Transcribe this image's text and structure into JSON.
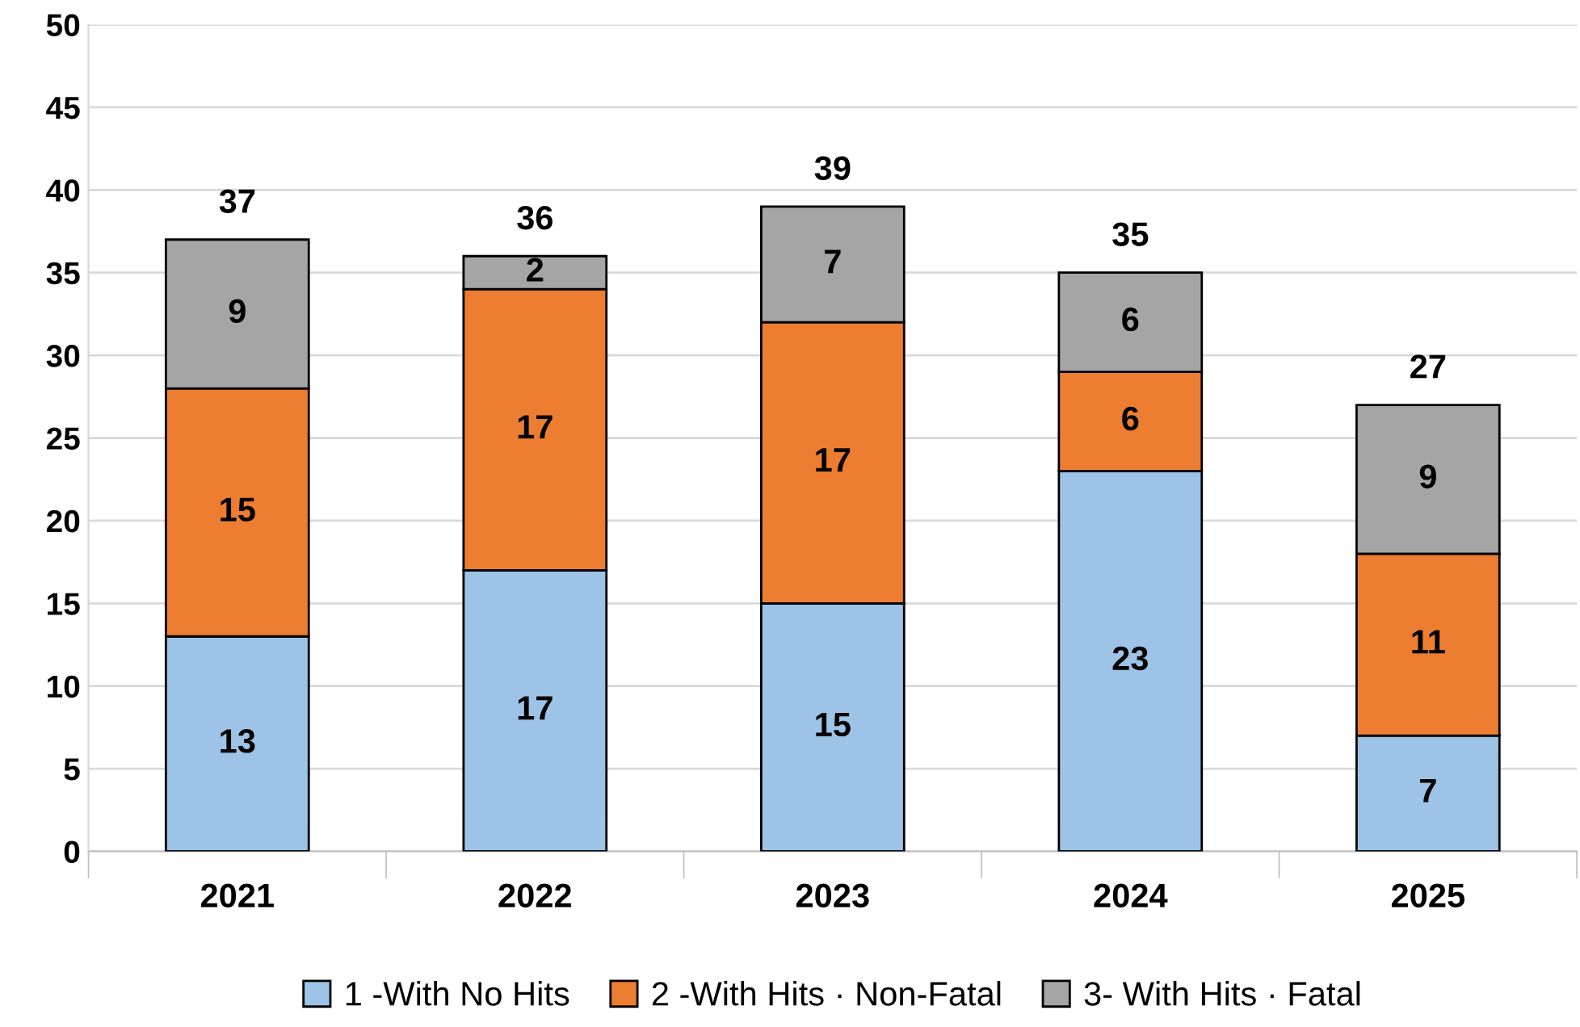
{
  "chart_data": {
    "type": "bar",
    "stacked": true,
    "categories": [
      "2021",
      "2022",
      "2023",
      "2024",
      "2025"
    ],
    "series": [
      {
        "name": "1 -With No Hits",
        "color": "#9dc3e6",
        "values": [
          13,
          17,
          15,
          23,
          7
        ]
      },
      {
        "name": "2 -With Hits · Non-Fatal",
        "color": "#ed7d31",
        "values": [
          15,
          17,
          17,
          6,
          11
        ]
      },
      {
        "name": "3- With Hits · Fatal",
        "color": "#a5a5a5",
        "values": [
          9,
          2,
          7,
          6,
          9
        ]
      }
    ],
    "totals": [
      "37",
      "36",
      "39",
      "35",
      "27"
    ],
    "data_labels": true,
    "ylim": [
      0,
      50
    ],
    "yticks": [
      0,
      5,
      10,
      15,
      20,
      25,
      30,
      35,
      40,
      45,
      50
    ],
    "grid": "y",
    "legend": "bottom"
  }
}
